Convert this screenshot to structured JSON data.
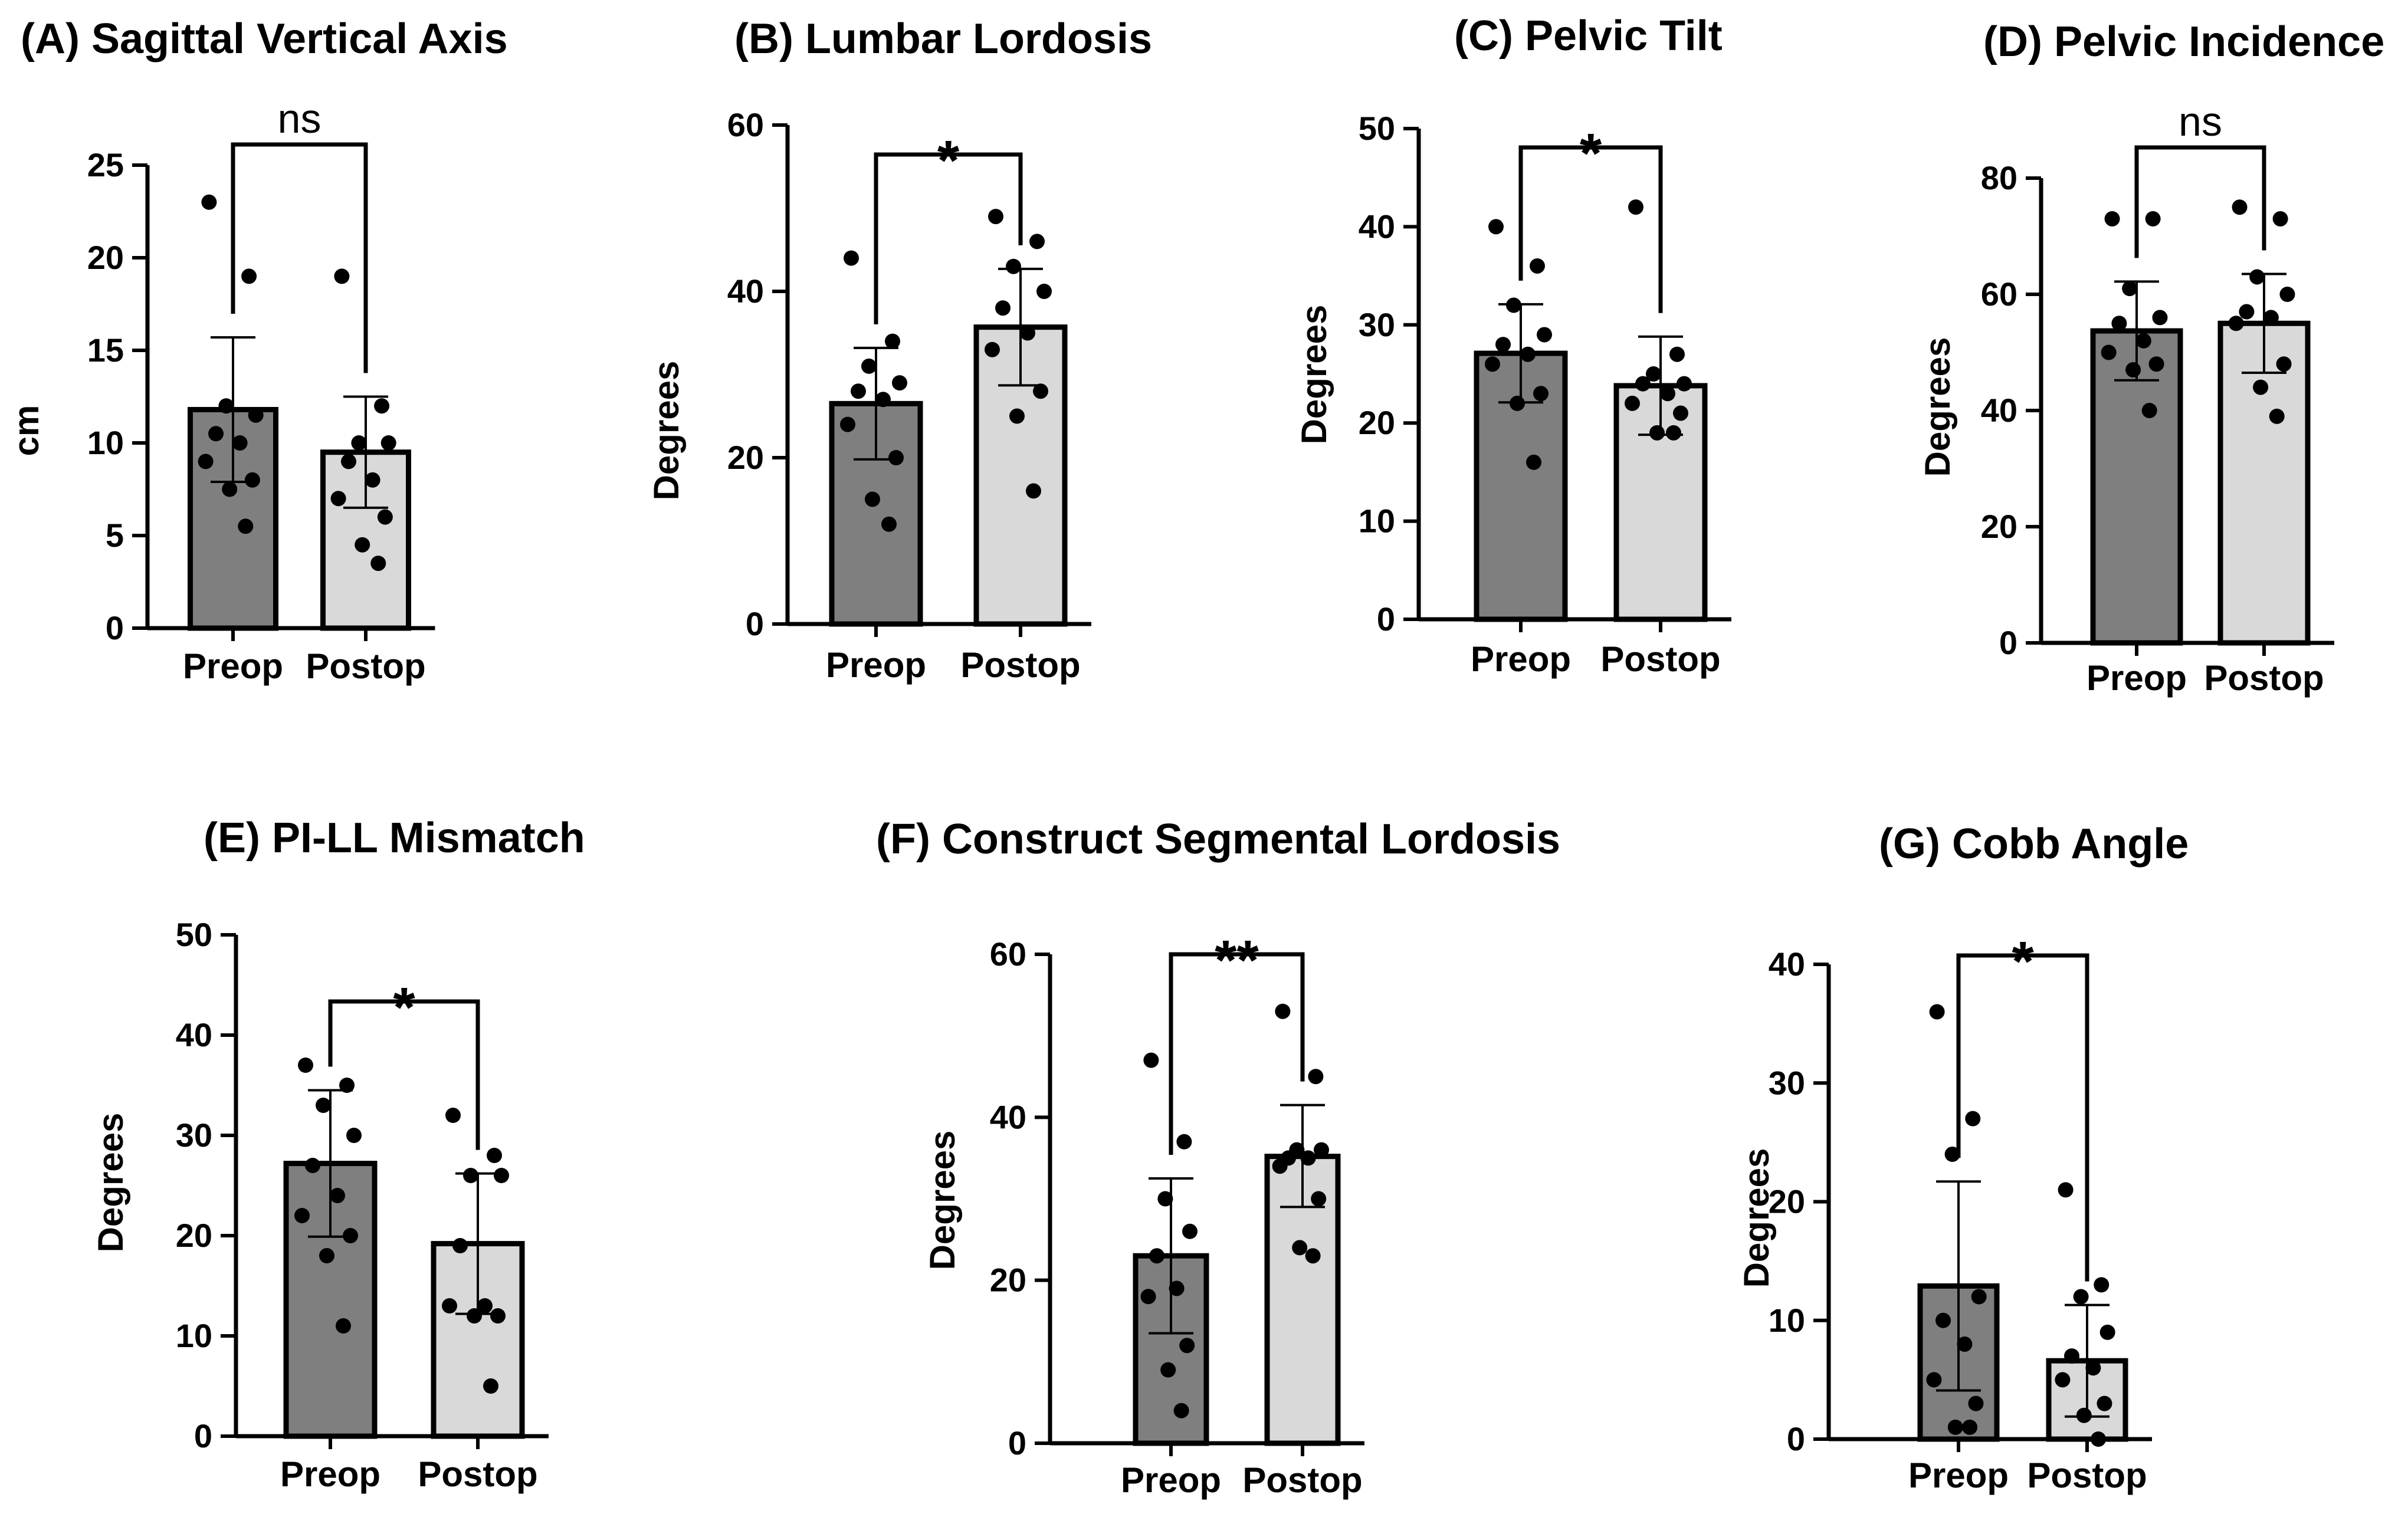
{
  "colors": {
    "preop": "#7f7f7f",
    "postop": "#d9d9d9",
    "stroke": "#000000"
  },
  "chart_data": [
    {
      "type": "bar",
      "title": "(A) Sagittal Vertical Axis",
      "ylabel": "cm",
      "categories": [
        "Preop",
        "Postop"
      ],
      "ylim": [
        0,
        25
      ],
      "yticks": [
        0,
        5,
        10,
        15,
        20,
        25
      ],
      "means": [
        11.8,
        9.5
      ],
      "sd_low": [
        7.9,
        6.5
      ],
      "sd_high": [
        15.7,
        12.5
      ],
      "points": [
        [
          23,
          19,
          12,
          11.5,
          10.5,
          10,
          9,
          8,
          7.5,
          5.5
        ],
        [
          19,
          12,
          10,
          10,
          9,
          8,
          7,
          6,
          4.5,
          3.5
        ]
      ],
      "significance": "ns"
    },
    {
      "type": "bar",
      "title": "(B) Lumbar Lordosis",
      "ylabel": "Degrees",
      "categories": [
        "Preop",
        "Postop"
      ],
      "ylim": [
        0,
        60
      ],
      "yticks": [
        0,
        20,
        40,
        60
      ],
      "means": [
        26.5,
        35.7
      ],
      "sd_low": [
        19.8,
        28.7
      ],
      "sd_high": [
        33.2,
        42.7
      ],
      "points": [
        [
          44,
          34,
          31,
          29,
          28,
          27,
          24,
          20,
          15,
          12
        ],
        [
          49,
          46,
          43,
          40,
          38,
          35,
          33,
          28,
          25,
          16
        ]
      ],
      "significance": "*"
    },
    {
      "type": "bar",
      "title": "(C) Pelvic Tilt",
      "ylabel": "Degrees",
      "categories": [
        "Preop",
        "Postop"
      ],
      "ylim": [
        0,
        50
      ],
      "yticks": [
        0,
        10,
        20,
        30,
        40,
        50
      ],
      "means": [
        27.1,
        23.8
      ],
      "sd_low": [
        22.1,
        18.8
      ],
      "sd_high": [
        32.1,
        28.8
      ],
      "points": [
        [
          40,
          36,
          32,
          29,
          28,
          27,
          26,
          23,
          22,
          16
        ],
        [
          42,
          27,
          25,
          24,
          24,
          23,
          22,
          21,
          19,
          19
        ]
      ],
      "significance": "*"
    },
    {
      "type": "bar",
      "title": "(D) Pelvic Incidence",
      "ylabel": "Degrees",
      "categories": [
        "Preop",
        "Postop"
      ],
      "ylim": [
        0,
        80
      ],
      "yticks": [
        0,
        20,
        40,
        60,
        80
      ],
      "means": [
        53.7,
        55
      ],
      "sd_low": [
        45.2,
        46.5
      ],
      "sd_high": [
        62.2,
        63.5
      ],
      "points": [
        [
          73,
          73,
          61,
          56,
          55,
          52,
          50,
          48,
          47,
          40
        ],
        [
          75,
          73,
          63,
          60,
          57,
          56,
          55,
          48,
          44,
          39
        ]
      ],
      "significance": "ns"
    },
    {
      "type": "bar",
      "title": "(E) PI-LL Mismatch",
      "ylabel": "Degrees",
      "categories": [
        "Preop",
        "Postop"
      ],
      "ylim": [
        0,
        50
      ],
      "yticks": [
        0,
        10,
        20,
        30,
        40,
        50
      ],
      "means": [
        27.2,
        19.2
      ],
      "sd_low": [
        19.9,
        12.2
      ],
      "sd_high": [
        34.5,
        26.2
      ],
      "points": [
        [
          37,
          35,
          33,
          30,
          27,
          24,
          22,
          20,
          18,
          11
        ],
        [
          32,
          28,
          26,
          26,
          19,
          13,
          13,
          12,
          12,
          5
        ]
      ],
      "significance": "*"
    },
    {
      "type": "bar",
      "title": "(F) Construct Segmental Lordosis",
      "ylabel": "Degrees",
      "categories": [
        "Preop",
        "Postop"
      ],
      "ylim": [
        0,
        60
      ],
      "yticks": [
        0,
        20,
        40,
        60
      ],
      "means": [
        23,
        35.2
      ],
      "sd_low": [
        13.5,
        29
      ],
      "sd_high": [
        32.5,
        41.5
      ],
      "points": [
        [
          47,
          37,
          30,
          26,
          23,
          19,
          18,
          12,
          9,
          4
        ],
        [
          53,
          45,
          36,
          36,
          35,
          35,
          34,
          30,
          24,
          23
        ]
      ],
      "significance": "**"
    },
    {
      "type": "bar",
      "title": "(G) Cobb Angle",
      "ylabel": "Degrees",
      "categories": [
        "Preop",
        "Postop"
      ],
      "ylim": [
        0,
        40
      ],
      "yticks": [
        0,
        10,
        20,
        30,
        40
      ],
      "means": [
        12.9,
        6.6
      ],
      "sd_low": [
        4.1,
        1.9
      ],
      "sd_high": [
        21.7,
        11.3
      ],
      "points": [
        [
          36,
          27,
          24,
          12,
          10,
          8,
          5,
          3,
          1,
          1
        ],
        [
          21,
          13,
          12,
          9,
          7,
          6,
          5,
          3,
          2,
          0
        ]
      ],
      "significance": "*"
    }
  ]
}
